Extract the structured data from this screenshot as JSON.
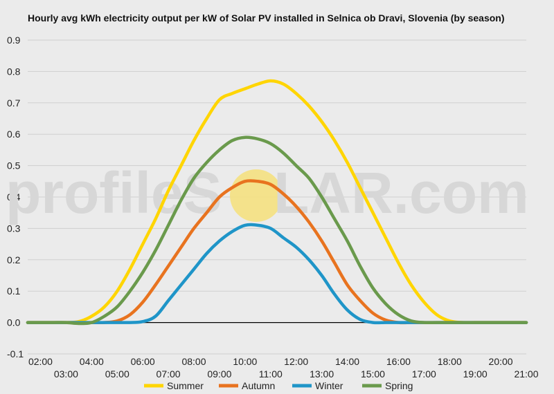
{
  "title": "Hourly avg kWh electricity output per kW of Solar PV installed in Selnica ob Dravi, Slovenia (by season)",
  "watermark": {
    "left": "profileS",
    "right": "LAR.com"
  },
  "colors": {
    "background": "#ebebeb",
    "grid": "#cfcfcf",
    "zero_line": "#000000",
    "sun": "#f6e07a",
    "watermark": "#d7d7d7"
  },
  "chart_data": {
    "type": "line",
    "x": [
      "01:30",
      "02:00",
      "02:30",
      "03:00",
      "03:30",
      "04:00",
      "04:30",
      "05:00",
      "05:30",
      "06:00",
      "06:30",
      "07:00",
      "07:30",
      "08:00",
      "08:30",
      "09:00",
      "09:30",
      "10:00",
      "10:30",
      "11:00",
      "11:30",
      "12:00",
      "12:30",
      "13:00",
      "13:30",
      "14:00",
      "14:30",
      "15:00",
      "15:30",
      "16:00",
      "16:30",
      "17:00",
      "17:30",
      "18:00",
      "18:30",
      "19:00",
      "19:30",
      "20:00",
      "20:30",
      "21:00"
    ],
    "x_ticks_top": [
      "02:00",
      "04:00",
      "06:00",
      "08:00",
      "10:00",
      "12:00",
      "14:00",
      "16:00",
      "18:00",
      "20:00"
    ],
    "x_ticks_bottom": [
      "03:00",
      "05:00",
      "07:00",
      "09:00",
      "11:00",
      "13:00",
      "15:00",
      "17:00",
      "19:00",
      "21:00"
    ],
    "y_ticks": [
      "0.9",
      "0.8",
      "0.7",
      "0.6",
      "0.5",
      "0.4",
      "0.3",
      "0.2",
      "0.1",
      "0.0",
      "-0.1"
    ],
    "ylim": [
      -0.1,
      0.9
    ],
    "grid": true,
    "legend_position": "bottom",
    "series": [
      {
        "name": "Summer",
        "color": "#ffd500",
        "values": [
          0,
          0,
          0,
          0,
          0.003,
          0.02,
          0.05,
          0.1,
          0.17,
          0.25,
          0.33,
          0.42,
          0.5,
          0.58,
          0.65,
          0.71,
          0.73,
          0.745,
          0.76,
          0.77,
          0.76,
          0.73,
          0.69,
          0.64,
          0.58,
          0.51,
          0.43,
          0.35,
          0.27,
          0.19,
          0.12,
          0.065,
          0.025,
          0.005,
          0,
          0,
          0,
          0,
          0,
          0
        ]
      },
      {
        "name": "Autumn",
        "color": "#e8731f",
        "values": [
          0,
          0,
          0,
          0,
          0,
          0,
          0,
          0.005,
          0.025,
          0.065,
          0.12,
          0.18,
          0.24,
          0.3,
          0.35,
          0.4,
          0.43,
          0.45,
          0.45,
          0.44,
          0.41,
          0.37,
          0.32,
          0.26,
          0.19,
          0.12,
          0.07,
          0.03,
          0.008,
          0,
          0,
          0,
          0,
          0,
          0,
          0,
          0,
          0,
          0,
          0
        ]
      },
      {
        "name": "Winter",
        "color": "#1f95c8",
        "values": [
          0,
          0,
          0,
          0,
          0,
          0,
          0,
          0,
          0,
          0.003,
          0.02,
          0.07,
          0.12,
          0.17,
          0.22,
          0.26,
          0.29,
          0.31,
          0.31,
          0.3,
          0.27,
          0.24,
          0.2,
          0.15,
          0.09,
          0.04,
          0.01,
          0,
          0,
          0,
          0,
          0,
          0,
          0,
          0,
          0,
          0,
          0,
          0,
          0
        ]
      },
      {
        "name": "Spring",
        "color": "#6a9a4c",
        "values": [
          0,
          0,
          0,
          0,
          -0.003,
          0,
          0.02,
          0.05,
          0.1,
          0.16,
          0.23,
          0.31,
          0.39,
          0.46,
          0.51,
          0.55,
          0.58,
          0.59,
          0.585,
          0.57,
          0.54,
          0.5,
          0.46,
          0.4,
          0.33,
          0.26,
          0.18,
          0.11,
          0.06,
          0.025,
          0.005,
          0,
          0,
          0,
          0,
          0,
          0,
          0,
          0,
          0
        ]
      }
    ]
  }
}
